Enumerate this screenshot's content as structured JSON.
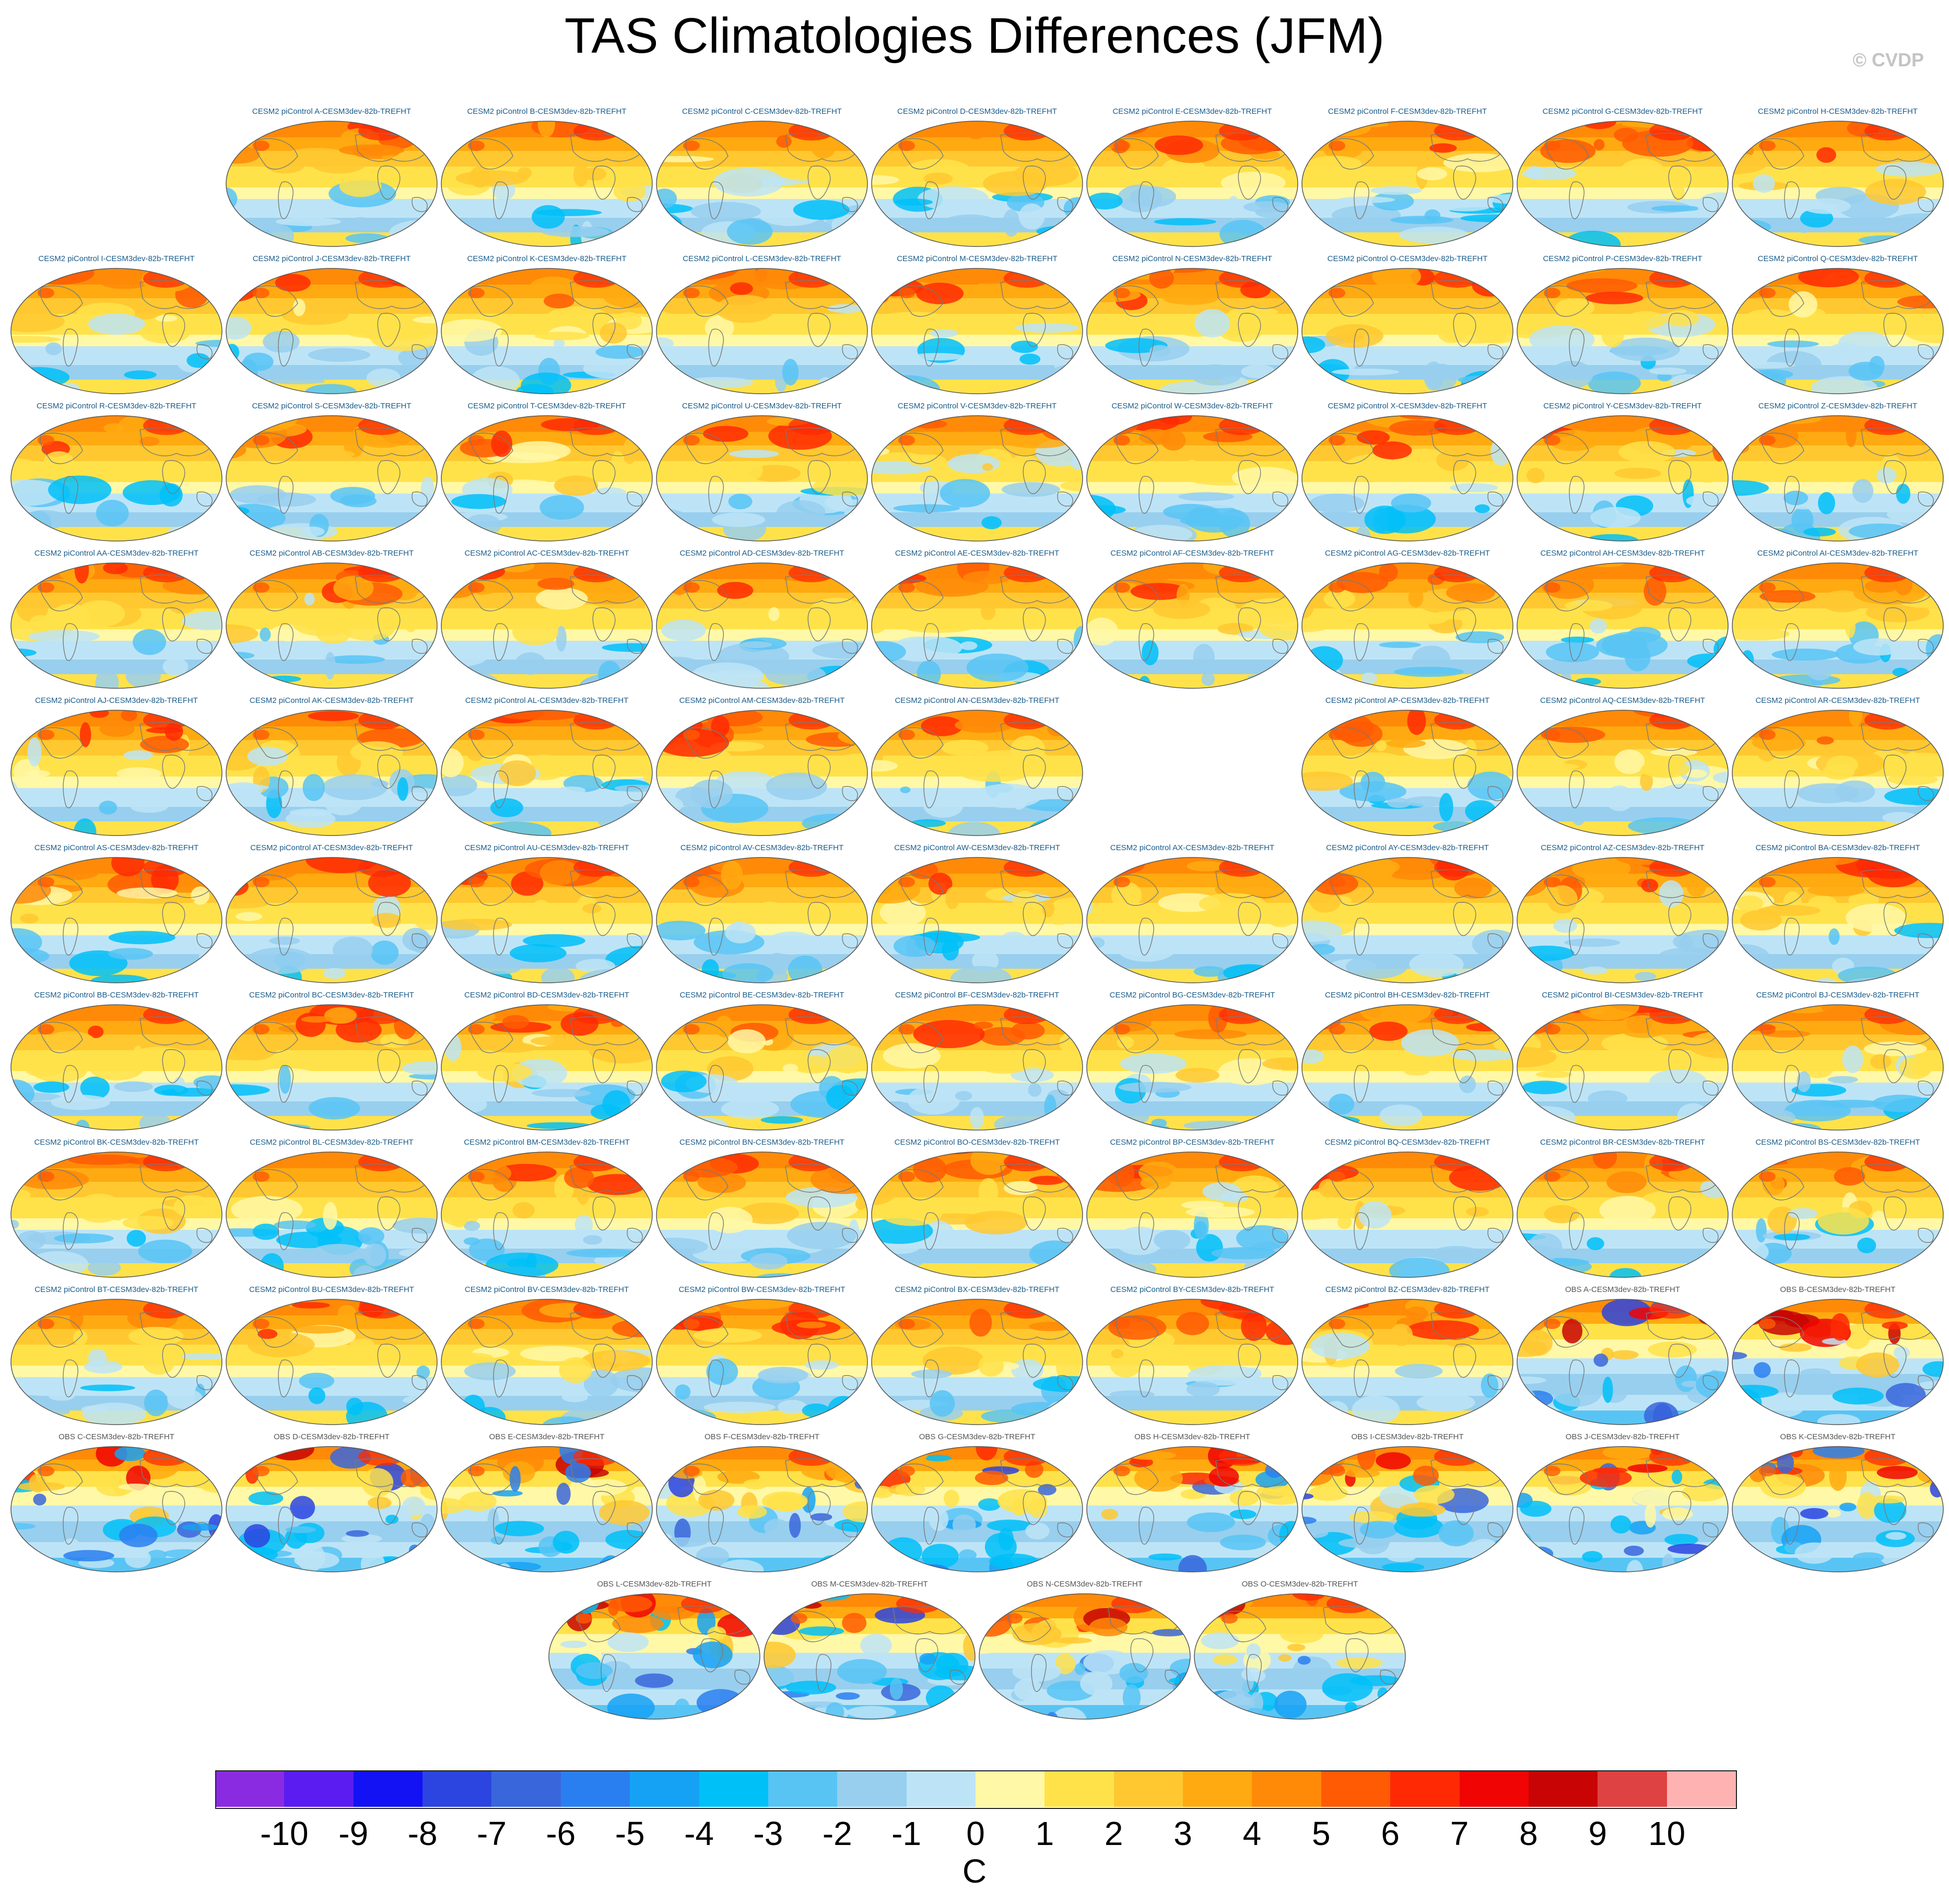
{
  "title": "TAS Climatologies Differences (JFM)",
  "watermark": "© CVDP",
  "colors": {
    "control_title": "#1a5c8a",
    "obs_title": "#555555"
  },
  "chart_data": {
    "type": "panel-grid-maps",
    "variable": "TAS",
    "season": "JFM",
    "layout_rows": [
      [
        "",
        "A",
        "B",
        "C",
        "D",
        "E",
        "F",
        "G",
        "H"
      ],
      [
        "I",
        "J",
        "K",
        "L",
        "M",
        "N",
        "O",
        "P",
        "Q"
      ],
      [
        "R",
        "S",
        "T",
        "U",
        "V",
        "W",
        "X",
        "Y",
        "Z"
      ],
      [
        "AA",
        "AB",
        "AC",
        "AD",
        "AE",
        "AF",
        "AG",
        "AH",
        "AI"
      ],
      [
        "AJ",
        "AK",
        "AL",
        "AM",
        "AN",
        "",
        "AP",
        "AQ",
        "AR"
      ],
      [
        "AS",
        "AT",
        "AU",
        "AV",
        "AW",
        "AX",
        "AY",
        "AZ",
        "BA"
      ],
      [
        "BB",
        "BC",
        "BD",
        "BE",
        "BF",
        "BG",
        "BH",
        "BI",
        "BJ"
      ],
      [
        "BK",
        "BL",
        "BM",
        "BN",
        "BO",
        "BP",
        "BQ",
        "BR",
        "BS"
      ],
      [
        "BT",
        "BU",
        "BV",
        "BW",
        "BX",
        "BY",
        "BZ",
        "OBS A",
        "OBS B"
      ],
      [
        "OBS C",
        "OBS D",
        "OBS E",
        "OBS F",
        "OBS G",
        "OBS H",
        "OBS I",
        "OBS J",
        "OBS K"
      ],
      [
        "OBS L",
        "OBS M",
        "OBS N",
        "OBS O"
      ]
    ],
    "control_prefix": "CESM2 piControl ",
    "suffix": "-CESM3dev-82b-TREFHT",
    "colorbar": {
      "levels": [
        "-10",
        "-9",
        "-8",
        "-7",
        "-6",
        "-5",
        "-4",
        "-3",
        "-2",
        "-1",
        "0",
        "1",
        "2",
        "3",
        "4",
        "5",
        "6",
        "7",
        "8",
        "9",
        "10"
      ],
      "colors": [
        "#8a2be2",
        "#5a1cf0",
        "#1212f4",
        "#2c44e0",
        "#3a66dc",
        "#2a7ff0",
        "#16a2f4",
        "#00c0f8",
        "#58c4f4",
        "#98cfee",
        "#bde4f6",
        "#fff8a6",
        "#ffe24a",
        "#ffc830",
        "#ffaa10",
        "#ff8a08",
        "#ff5a04",
        "#ff2a04",
        "#f00404",
        "#c80404",
        "#de4242",
        "#ffb2b2"
      ],
      "unit": "C"
    }
  }
}
